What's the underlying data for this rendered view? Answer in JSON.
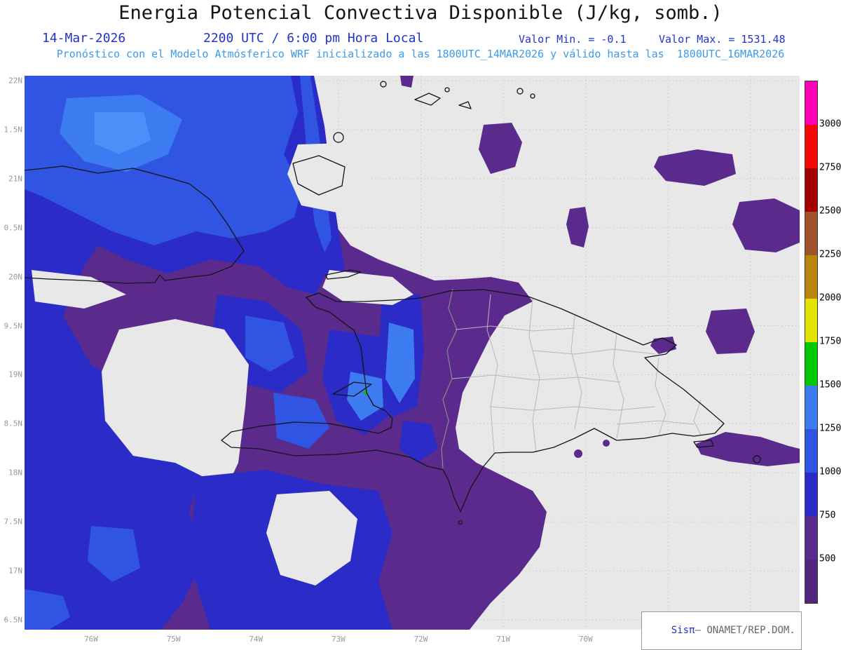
{
  "header": {
    "title": "Energia Potencial Convectiva Disponible (J/kg, somb.)",
    "date": "14-Mar-2026",
    "time": "2200 UTC / 6:00 pm Hora Local",
    "min_label": "Valor Min. = -0.1",
    "max_label": "Valor Max. = 1531.48",
    "model_line": "Pronóstico con el Modelo Atmósferico WRF inicializado a las 1800UTC_14MAR2026 y válido hasta las  1800UTC_16MAR2026"
  },
  "map": {
    "lat_labels": [
      "22N",
      "1.5N",
      "21N",
      "0.5N",
      "20N",
      "9.5N",
      "19N",
      "8.5N",
      "18N",
      "7.5N",
      "17N",
      "6.5N"
    ],
    "lon_labels": [
      "76W",
      "75W",
      "74W",
      "73W",
      "72W",
      "71W",
      "70W",
      "69W",
      "68W"
    ]
  },
  "colorbar": {
    "tick_labels": [
      "3000",
      "2750",
      "2500",
      "2250",
      "2000",
      "1750",
      "1500",
      "1250",
      "1000",
      "750",
      "500"
    ],
    "colors_top_to_bottom": [
      "#FF00B4",
      "#F90606",
      "#A40000",
      "#A0522D",
      "#B8860B",
      "#E3E300",
      "#00C800",
      "#3D7BF0",
      "#2F55E2",
      "#2B2BC8",
      "#5A2B8C",
      "#50267E"
    ]
  },
  "credit": {
    "brand": "Sis",
    "pi": "π",
    "dash": "– ",
    "org": "ONAMET/REP.DOM."
  },
  "colors": {
    "title_color": "#151515",
    "header_blue": "#2233CC",
    "header_cyan": "#3A9BEA",
    "axis_label": "#999999",
    "map_bg": "#E8E8E8",
    "grid": "#C8C8C8",
    "coastline": "#141414",
    "province_line": "#B8B8B8",
    "country_border": "#8A8A8A",
    "credit_org": "#666666",
    "field": {
      "purple": "#5A2B8C",
      "navy": "#2B2BC8",
      "blue": "#2F55E2",
      "bright": "#3D7BF0",
      "light": "#4E8EF8",
      "green": "#00C800",
      "bg": "#E8E8E8"
    }
  },
  "chart_data": {
    "type": "heatmap",
    "title": "Energia Potencial Convectiva Disponible (J/kg, somb.)",
    "units": "J/kg",
    "value_min": -0.1,
    "value_max": 1531.48,
    "contour_levels": [
      500,
      750,
      1000,
      1250,
      1500,
      1750,
      2000,
      2250,
      2500,
      2750,
      3000
    ],
    "level_colors_low_to_high": [
      "#50267E",
      "#5A2B8C",
      "#2B2BC8",
      "#2F55E2",
      "#3D7BF0",
      "#00C800",
      "#E3E300",
      "#B8860B",
      "#A0522D",
      "#A40000",
      "#F90606",
      "#FF00B4"
    ],
    "lat_axis_labels": [
      "22N",
      "1.5N",
      "21N",
      "0.5N",
      "20N",
      "9.5N",
      "19N",
      "8.5N",
      "18N",
      "7.5N",
      "17N",
      "6.5N"
    ],
    "lon_axis_labels": [
      "76W",
      "75W",
      "74W",
      "73W",
      "72W",
      "71W",
      "70W",
      "69W",
      "68W"
    ],
    "region": "Hispaniola / eastern Cuba / Caribbean",
    "grid": "dotted"
  }
}
